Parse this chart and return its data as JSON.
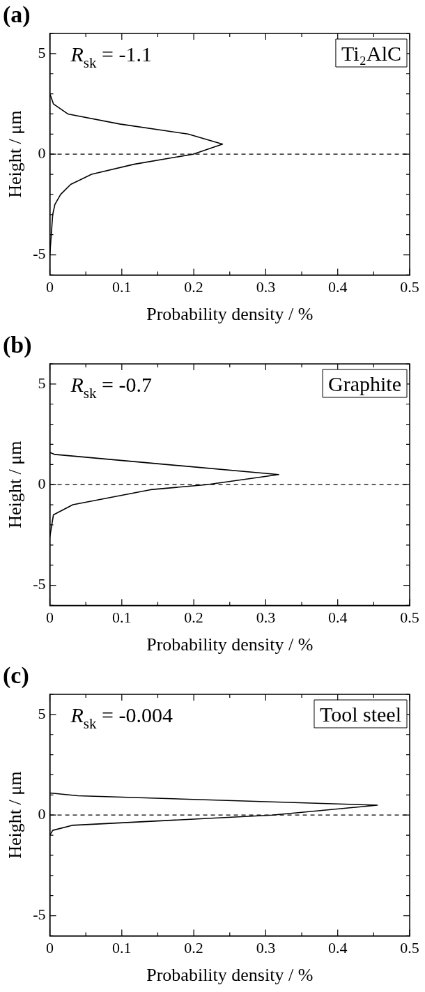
{
  "chart_data": [
    {
      "type": "line",
      "title": "(a)",
      "xlabel": "Probability density / %",
      "ylabel": "Height / μm",
      "annotations": [
        "R$_{sk}$ = -1.1",
        "Ti₂AlC"
      ],
      "series": [
        {
          "color": "#000000",
          "x": [
            0,
            0.005,
            0.025,
            0.097,
            0.192,
            0.24,
            0.199,
            0.117,
            0.058,
            0.029,
            0.015,
            0.007,
            0.004,
            0.002,
            0
          ],
          "values": [
            3,
            2.5,
            2,
            1.5,
            1,
            0.5,
            0,
            -0.5,
            -1,
            -1.5,
            -2,
            -2.5,
            -3,
            -4,
            -5
          ]
        }
      ],
      "xlim": [
        0,
        0.5
      ],
      "ylim": [
        -6,
        6
      ],
      "xticks": [
        0,
        {
          "value": 0.05,
          "label": null
        },
        0.1,
        {
          "value": 0.15,
          "label": null
        },
        0.2,
        {
          "value": 0.25,
          "label": null
        },
        0.3,
        {
          "value": 0.35,
          "label": null
        },
        0.4,
        {
          "value": 0.45,
          "label": null
        },
        0.5
      ],
      "yticks": [
        {
          "value": -6,
          "label": null
        },
        -5,
        {
          "value": -4,
          "label": null
        },
        {
          "value": -3,
          "label": null
        },
        {
          "value": -2,
          "label": null
        },
        {
          "value": -1,
          "label": null
        },
        0,
        {
          "value": 1,
          "label": null
        },
        {
          "value": 2,
          "label": null
        },
        {
          "value": 3,
          "label": null
        },
        {
          "value": 4,
          "label": null
        },
        5,
        {
          "value": 6,
          "label": null
        }
      ],
      "ref_lines": [
        {
          "axis": "y",
          "value": 0,
          "line_style": "dashed",
          "color": "#000000"
        }
      ],
      "grid": false,
      "legend": false,
      "marker": "none",
      "line_style": "solid"
    },
    {
      "type": "line",
      "title": "(b)",
      "xlabel": "Probability density / %",
      "ylabel": "Height / μm",
      "annotations": [
        "R$_{sk}$ = -0.7",
        "Graphite"
      ],
      "series": [
        {
          "color": "#000000",
          "x": [
            0,
            0.007,
            0.318,
            0.218,
            0.14,
            0.032,
            0.005,
            0
          ],
          "values": [
            1.6,
            1.5,
            0.5,
            0,
            -0.25,
            -1,
            -1.5,
            -2.6
          ]
        }
      ],
      "xlim": [
        0,
        0.5
      ],
      "ylim": [
        -6,
        6
      ],
      "xticks": [
        0,
        {
          "value": 0.05,
          "label": null
        },
        0.1,
        {
          "value": 0.15,
          "label": null
        },
        0.2,
        {
          "value": 0.25,
          "label": null
        },
        0.3,
        {
          "value": 0.35,
          "label": null
        },
        0.4,
        {
          "value": 0.45,
          "label": null
        },
        0.5
      ],
      "yticks": [
        {
          "value": -6,
          "label": null
        },
        -5,
        {
          "value": -4,
          "label": null
        },
        {
          "value": -3,
          "label": null
        },
        {
          "value": -2,
          "label": null
        },
        {
          "value": -1,
          "label": null
        },
        0,
        {
          "value": 1,
          "label": null
        },
        {
          "value": 2,
          "label": null
        },
        {
          "value": 3,
          "label": null
        },
        {
          "value": 4,
          "label": null
        },
        5,
        {
          "value": 6,
          "label": null
        }
      ],
      "ref_lines": [
        {
          "axis": "y",
          "value": 0,
          "line_style": "dashed",
          "color": "#000000"
        }
      ],
      "grid": false,
      "legend": false,
      "marker": "none",
      "line_style": "solid"
    },
    {
      "type": "line",
      "title": "(c)",
      "xlabel": "Probability density / %",
      "ylabel": "Height / μm",
      "annotations": [
        "R$_{sk}$ = -0.004",
        "Tool steel"
      ],
      "series": [
        {
          "color": "#000000",
          "x": [
            0,
            0.039,
            0.455,
            0.309,
            0.031,
            0.004,
            0
          ],
          "values": [
            1.1,
            0.96,
            0.49,
            0,
            -0.51,
            -0.76,
            -1
          ]
        }
      ],
      "xlim": [
        0,
        0.5
      ],
      "ylim": [
        -6,
        6
      ],
      "xticks": [
        0,
        {
          "value": 0.05,
          "label": null
        },
        0.1,
        {
          "value": 0.15,
          "label": null
        },
        0.2,
        {
          "value": 0.25,
          "label": null
        },
        0.3,
        {
          "value": 0.35,
          "label": null
        },
        0.4,
        {
          "value": 0.45,
          "label": null
        },
        0.5
      ],
      "yticks": [
        {
          "value": -6,
          "label": null
        },
        -5,
        {
          "value": -4,
          "label": null
        },
        {
          "value": -3,
          "label": null
        },
        {
          "value": -2,
          "label": null
        },
        {
          "value": -1,
          "label": null
        },
        0,
        {
          "value": 1,
          "label": null
        },
        {
          "value": 2,
          "label": null
        },
        {
          "value": 3,
          "label": null
        },
        {
          "value": 4,
          "label": null
        },
        5,
        {
          "value": 6,
          "label": null
        }
      ],
      "ref_lines": [
        {
          "axis": "y",
          "value": 0,
          "line_style": "dashed",
          "color": "#000000"
        }
      ],
      "grid": false,
      "legend": false,
      "marker": "none",
      "line_style": "solid"
    }
  ]
}
